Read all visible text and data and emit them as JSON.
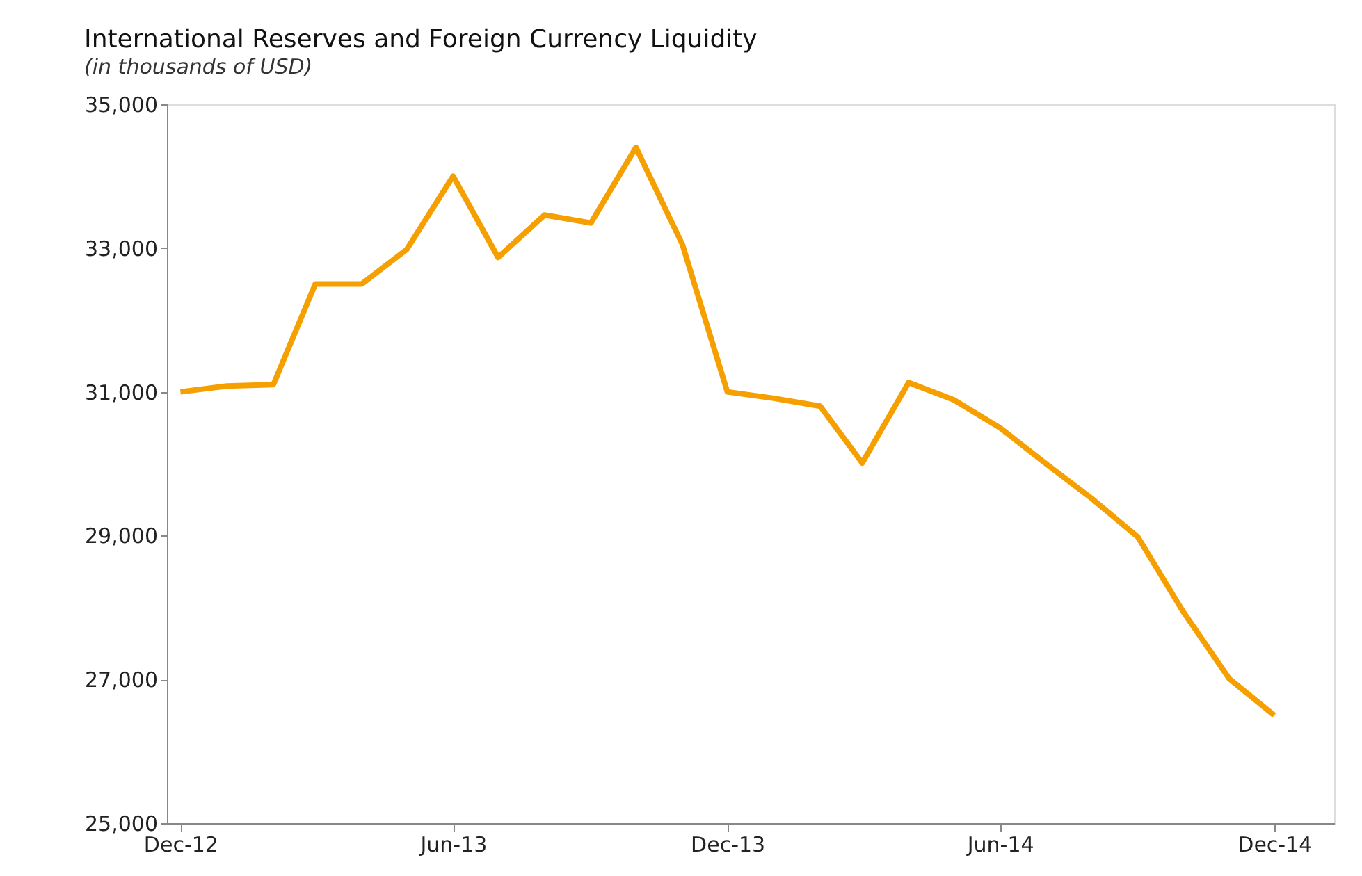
{
  "chart_data": {
    "type": "line",
    "title": "International Reserves and Foreign Currency Liquidity",
    "subtitle": "(in thousands of USD)",
    "x": [
      "2012-12",
      "2013-01",
      "2013-02",
      "2013-03",
      "2013-04",
      "2013-05",
      "2013-06",
      "2013-07",
      "2013-08",
      "2013-09",
      "2013-10",
      "2013-11",
      "2013-12",
      "2014-01",
      "2014-02",
      "2014-03",
      "2014-04",
      "2014-05",
      "2014-06",
      "2014-07",
      "2014-08",
      "2014-09",
      "2014-10",
      "2014-11",
      "2014-12"
    ],
    "series": [
      {
        "color": "#f5a000",
        "values": [
          31000,
          31080,
          31100,
          32500,
          32500,
          32980,
          34000,
          32870,
          33460,
          33350,
          34400,
          33050,
          31000,
          30910,
          30800,
          30010,
          31130,
          30890,
          30500,
          30010,
          29520,
          28980,
          27950,
          27010,
          26500
        ]
      }
    ],
    "xlim": [
      "2012-11-22",
      "2015-01-10"
    ],
    "xticks": [
      {
        "value": "2012-12",
        "label": "Dec-12"
      },
      {
        "value": "2013-06",
        "label": "Jun-13"
      },
      {
        "value": "2013-12",
        "label": "Dec-13"
      },
      {
        "value": "2014-06",
        "label": "Jun-14"
      },
      {
        "value": "2014-12",
        "label": "Dec-14"
      }
    ],
    "ylim": [
      25000,
      35000
    ],
    "yticks": [
      {
        "value": 25000,
        "label": "25,000"
      },
      {
        "value": 27000,
        "label": "27,000"
      },
      {
        "value": 29000,
        "label": "29,000"
      },
      {
        "value": 31000,
        "label": "31,000"
      },
      {
        "value": 33000,
        "label": "33,000"
      },
      {
        "value": 35000,
        "label": "35,000"
      }
    ],
    "grid": false,
    "marker": "none",
    "line_style": "solid"
  }
}
